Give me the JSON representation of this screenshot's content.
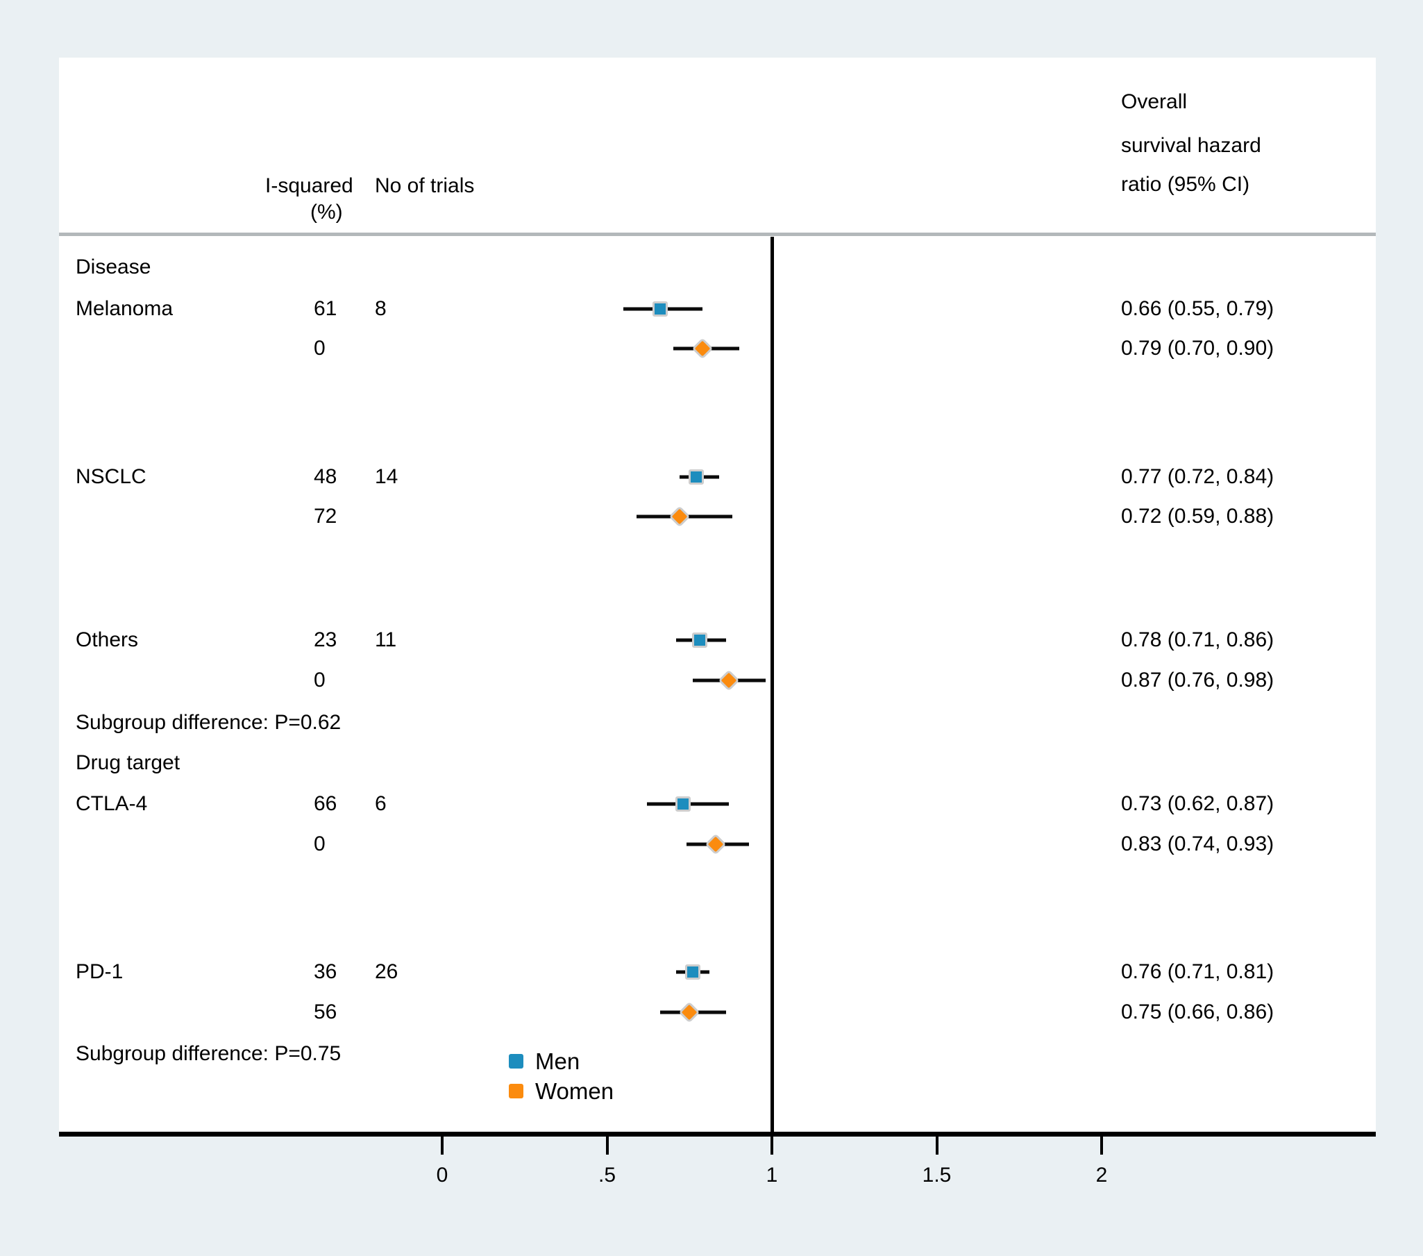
{
  "figure": {
    "background_color": "#eaf0f3",
    "panel_color": "#ffffff"
  },
  "header": {
    "i_squared_line1": "I-squared",
    "i_squared_line2": "(%)",
    "no_of_trials": "No of trials",
    "outcome_line1": "Overall",
    "outcome_line2": "survival hazard",
    "outcome_line3": "ratio (95% CI)"
  },
  "legend": {
    "items": [
      {
        "label": "Men",
        "color": "#1d8dbe"
      },
      {
        "label": "Women",
        "color": "#fb8b0e"
      }
    ]
  },
  "chart_data": {
    "type": "forest",
    "title": "",
    "xlabel": "",
    "x_axis": {
      "tick_labels": [
        "0",
        ".5",
        "1",
        "1.5",
        "2"
      ],
      "tick_values": [
        0,
        0.5,
        1,
        1.5,
        2
      ],
      "reference_line_value": 1
    },
    "series_colors": {
      "Men": "#1d8dbe",
      "Women": "#fb8b0e"
    },
    "rows": [
      {
        "type": "section",
        "label": "Disease"
      },
      {
        "type": "estimate",
        "label": "Melanoma",
        "series": "Men",
        "i_squared": "61",
        "n_trials": "8",
        "hr": 0.66,
        "ci_low": 0.55,
        "ci_high": 0.79,
        "hr_text": "0.66 (0.55, 0.79)"
      },
      {
        "type": "estimate",
        "label": "",
        "series": "Women",
        "i_squared": "0",
        "n_trials": "",
        "hr": 0.79,
        "ci_low": 0.7,
        "ci_high": 0.9,
        "hr_text": "0.79 (0.70, 0.90)"
      },
      {
        "type": "estimate",
        "label": "NSCLC",
        "series": "Men",
        "i_squared": "48",
        "n_trials": "14",
        "hr": 0.77,
        "ci_low": 0.72,
        "ci_high": 0.84,
        "hr_text": "0.77 (0.72, 0.84)"
      },
      {
        "type": "estimate",
        "label": "",
        "series": "Women",
        "i_squared": "72",
        "n_trials": "",
        "hr": 0.72,
        "ci_low": 0.59,
        "ci_high": 0.88,
        "hr_text": "0.72 (0.59, 0.88)"
      },
      {
        "type": "estimate",
        "label": "Others",
        "series": "Men",
        "i_squared": "23",
        "n_trials": "11",
        "hr": 0.78,
        "ci_low": 0.71,
        "ci_high": 0.86,
        "hr_text": "0.78 (0.71, 0.86)"
      },
      {
        "type": "estimate",
        "label": "",
        "series": "Women",
        "i_squared": "0",
        "n_trials": "",
        "hr": 0.87,
        "ci_low": 0.76,
        "ci_high": 0.98,
        "hr_text": "0.87 (0.76, 0.98)"
      },
      {
        "type": "note",
        "label": "Subgroup difference: P=0.62"
      },
      {
        "type": "section",
        "label": "Drug target"
      },
      {
        "type": "estimate",
        "label": "CTLA-4",
        "series": "Men",
        "i_squared": "66",
        "n_trials": "6",
        "hr": 0.73,
        "ci_low": 0.62,
        "ci_high": 0.87,
        "hr_text": "0.73 (0.62, 0.87)"
      },
      {
        "type": "estimate",
        "label": "",
        "series": "Women",
        "i_squared": "0",
        "n_trials": "",
        "hr": 0.83,
        "ci_low": 0.74,
        "ci_high": 0.93,
        "hr_text": "0.83 (0.74, 0.93)"
      },
      {
        "type": "estimate",
        "label": "PD-1",
        "series": "Men",
        "i_squared": "36",
        "n_trials": "26",
        "hr": 0.76,
        "ci_low": 0.71,
        "ci_high": 0.81,
        "hr_text": "0.76 (0.71, 0.81)"
      },
      {
        "type": "estimate",
        "label": "",
        "series": "Women",
        "i_squared": "56",
        "n_trials": "",
        "hr": 0.75,
        "ci_low": 0.66,
        "ci_high": 0.86,
        "hr_text": "0.75 (0.66, 0.86)"
      },
      {
        "type": "note",
        "label": "Subgroup difference: P=0.75"
      }
    ]
  }
}
